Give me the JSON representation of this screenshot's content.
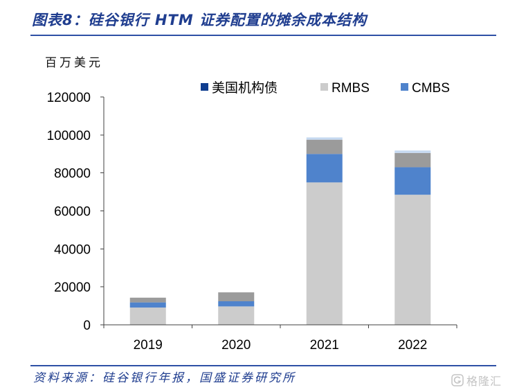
{
  "figure": {
    "source": "资料来源：硅谷银行年报，国盛证券研究所",
    "watermark": "格隆汇"
  },
  "theme": {
    "title_color": "#1F3D8F",
    "rule_color": "#2E50A5",
    "axis_color": "#404040",
    "watermark_color": "#C4C4C4"
  },
  "chart_data": {
    "type": "bar",
    "stacked": true,
    "title": "图表8：硅谷银行 HTM 证券配置的摊余成本结构",
    "ylabel": "百万美元",
    "categories": [
      "2019",
      "2020",
      "2021",
      "2022"
    ],
    "ylim": [
      0,
      120000
    ],
    "yticks": [
      0,
      20000,
      40000,
      60000,
      80000,
      100000,
      120000
    ],
    "grid": false,
    "legend_position": "top",
    "series": [
      {
        "name": "美国机构债",
        "color": "#0F3D8F",
        "values": [
          0,
          0,
          0,
          0
        ]
      },
      {
        "name": "RMBS",
        "color": "#CCCCCC",
        "values": [
          9100,
          9700,
          75000,
          68500
        ]
      },
      {
        "name": "CMBS",
        "color": "#4F83CC",
        "values": [
          2700,
          2700,
          15000,
          14500
        ]
      },
      {
        "color": "#9B9B9B",
        "values": [
          2500,
          4700,
          7500,
          7500
        ]
      },
      {
        "color": "#C6D9F1",
        "values": [
          0,
          0,
          1200,
          1300
        ]
      }
    ]
  }
}
